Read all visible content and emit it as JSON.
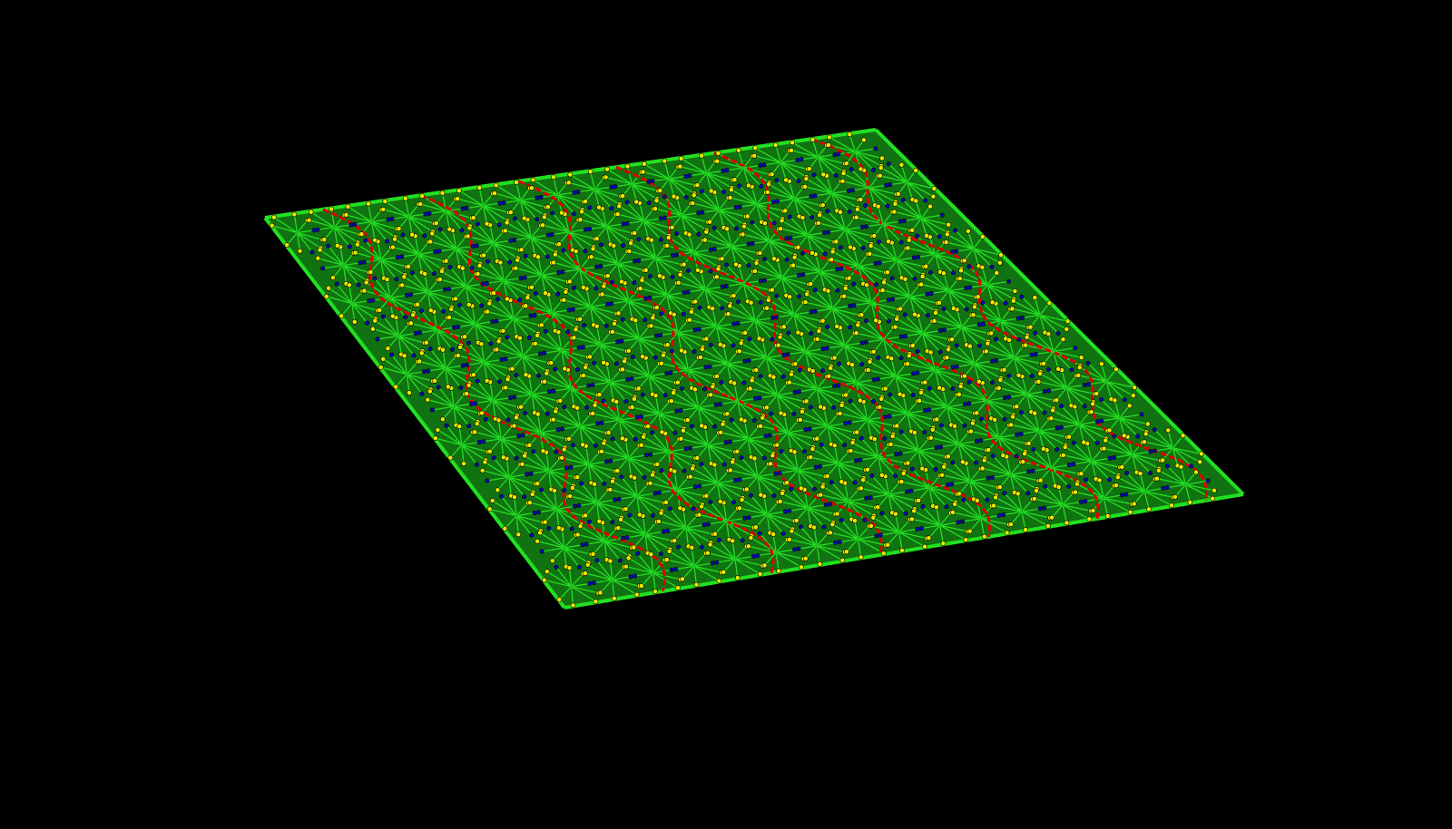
{
  "scene": {
    "background_color": "#000000",
    "surface_color": "#1fd01f",
    "edge_color": "#22e022",
    "hub_node_color": "#22c022",
    "vertex_node_color": "#e8e800",
    "boundary_node_color": "#0a0ab4",
    "seam_color": "#e00000"
  }
}
